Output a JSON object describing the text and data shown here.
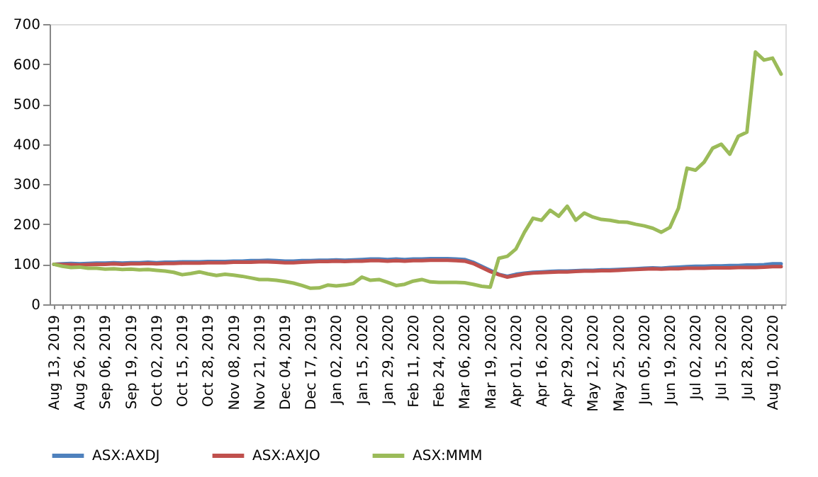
{
  "chart_data": {
    "type": "line",
    "categories": [
      "Aug 13, 2019",
      null,
      null,
      "Aug 26, 2019",
      null,
      null,
      "Sep 06, 2019",
      null,
      null,
      "Sep 19, 2019",
      null,
      null,
      "Oct 02, 2019",
      null,
      null,
      "Oct 15, 2019",
      null,
      null,
      "Oct 28, 2019",
      null,
      null,
      "Nov 08, 2019",
      null,
      null,
      "Nov 21, 2019",
      null,
      null,
      "Dec 04, 2019",
      null,
      null,
      "Dec 17, 2019",
      null,
      null,
      "Jan 02, 2020",
      null,
      null,
      "Jan 15, 2020",
      null,
      null,
      "Jan 29, 2020",
      null,
      null,
      "Feb 11, 2020",
      null,
      null,
      "Feb 24, 2020",
      null,
      null,
      "Mar 06, 2020",
      null,
      null,
      "Mar 19, 2020",
      null,
      null,
      "Apr 01, 2020",
      null,
      null,
      "Apr 16, 2020",
      null,
      null,
      "Apr 29, 2020",
      null,
      null,
      "May 12, 2020",
      null,
      null,
      "May 25, 2020",
      null,
      null,
      "Jun 05, 2020",
      null,
      null,
      "Jun 19, 2020",
      null,
      null,
      "Jul 02, 2020",
      null,
      null,
      "Jul 15, 2020",
      null,
      null,
      "Jul 28, 2020",
      null,
      null,
      "Aug 10, 2020",
      null
    ],
    "series": [
      {
        "name": "ASX:AXDJ",
        "color": "#4f81bd",
        "values": [
          100,
          101,
          102,
          101,
          102,
          103,
          103,
          104,
          103,
          104,
          104,
          105,
          104,
          105,
          105,
          106,
          106,
          106,
          107,
          107,
          107,
          108,
          108,
          109,
          109,
          110,
          109,
          108,
          108,
          109,
          109,
          110,
          110,
          111,
          110,
          111,
          112,
          113,
          113,
          112,
          113,
          112,
          113,
          113,
          114,
          114,
          114,
          113,
          112,
          105,
          95,
          85,
          75,
          70,
          75,
          78,
          80,
          81,
          82,
          83,
          83,
          84,
          85,
          85,
          86,
          86,
          87,
          88,
          89,
          90,
          91,
          90,
          92,
          93,
          94,
          95,
          95,
          96,
          96,
          97,
          97,
          98,
          98,
          99,
          101,
          101
        ]
      },
      {
        "name": "ASX:AXJO",
        "color": "#c0504d",
        "values": [
          100,
          99,
          99,
          98,
          99,
          100,
          100,
          101,
          100,
          101,
          101,
          102,
          101,
          102,
          102,
          103,
          103,
          103,
          104,
          104,
          104,
          105,
          105,
          105,
          106,
          106,
          105,
          104,
          104,
          105,
          106,
          107,
          107,
          108,
          107,
          108,
          108,
          109,
          109,
          108,
          109,
          108,
          109,
          109,
          110,
          110,
          110,
          109,
          108,
          102,
          92,
          82,
          74,
          68,
          72,
          76,
          78,
          79,
          80,
          81,
          81,
          82,
          83,
          83,
          84,
          84,
          85,
          86,
          87,
          88,
          89,
          88,
          89,
          89,
          90,
          90,
          90,
          91,
          91,
          91,
          92,
          92,
          92,
          93,
          94,
          94
        ]
      },
      {
        "name": "ASX:MMM",
        "color": "#9bbb59",
        "values": [
          100,
          95,
          92,
          93,
          90,
          90,
          88,
          89,
          87,
          88,
          86,
          87,
          85,
          83,
          80,
          74,
          77,
          81,
          76,
          72,
          75,
          73,
          70,
          66,
          62,
          62,
          60,
          57,
          53,
          47,
          40,
          41,
          48,
          46,
          48,
          52,
          68,
          60,
          62,
          55,
          47,
          50,
          58,
          62,
          56,
          55,
          55,
          55,
          54,
          50,
          45,
          43,
          115,
          120,
          138,
          180,
          215,
          210,
          235,
          220,
          245,
          210,
          228,
          218,
          212,
          210,
          206,
          205,
          200,
          196,
          190,
          180,
          192,
          240,
          340,
          335,
          355,
          390,
          400,
          375,
          420,
          430,
          630,
          610,
          615,
          575
        ]
      }
    ],
    "ylim": [
      0,
      700
    ],
    "yticks": [
      0,
      100,
      200,
      300,
      400,
      500,
      600,
      700
    ],
    "grid": false,
    "legend": "bottom",
    "line_style": "solid",
    "marker": "none"
  }
}
